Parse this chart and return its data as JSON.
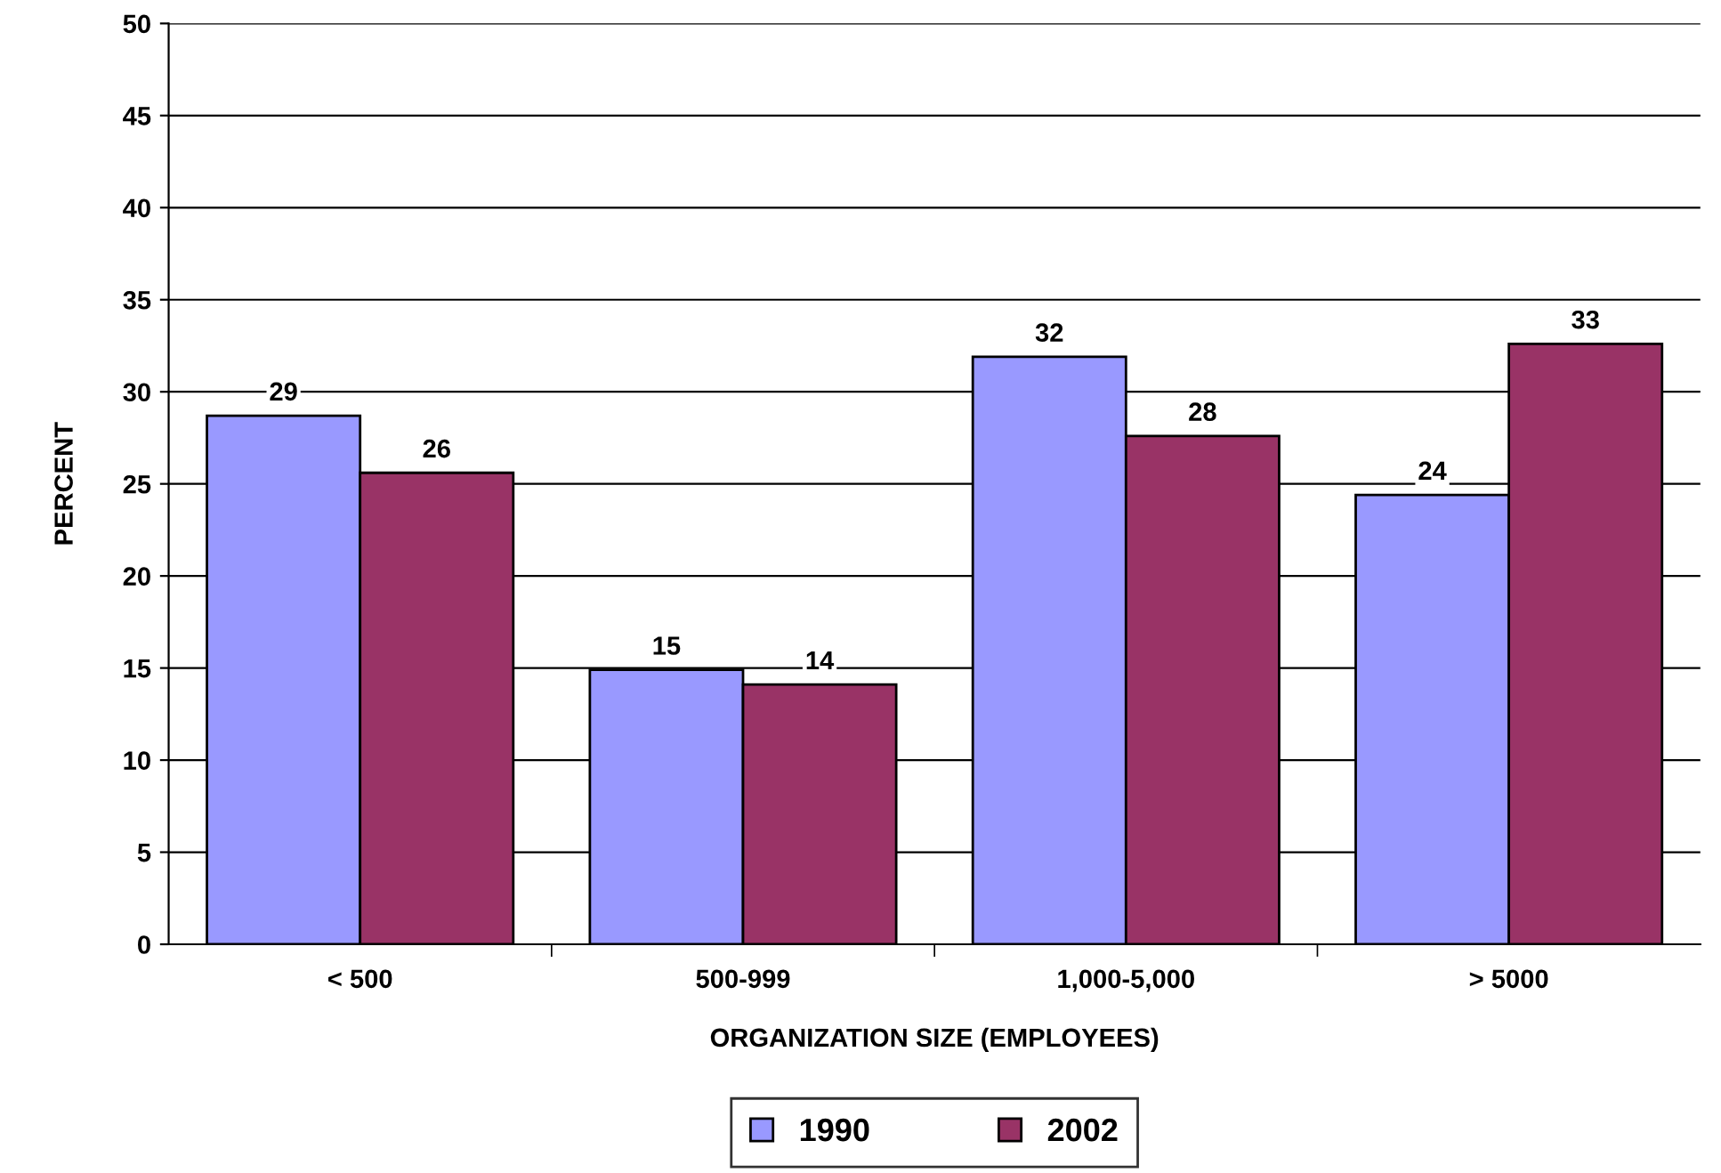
{
  "chart_data": {
    "type": "bar",
    "xlabel": "ORGANIZATION SIZE (EMPLOYEES)",
    "ylabel": "PERCENT",
    "categories": [
      "< 500",
      "500-999",
      "1,000-5,000",
      "> 5000"
    ],
    "series": [
      {
        "name": "1990",
        "color": "#9999ff",
        "values": [
          28.7,
          14.9,
          31.9,
          24.4
        ],
        "value_labels": [
          "29",
          "15",
          "32",
          "24"
        ]
      },
      {
        "name": "2002",
        "color": "#993366",
        "values": [
          25.6,
          14.1,
          27.6,
          32.6
        ],
        "value_labels": [
          "26",
          "14",
          "28",
          "33"
        ]
      }
    ],
    "ylim": [
      0,
      50
    ],
    "yticks": [
      0,
      5,
      10,
      15,
      20,
      25,
      30,
      35,
      40,
      45,
      50
    ],
    "grid": "y",
    "legend": "bottom"
  }
}
